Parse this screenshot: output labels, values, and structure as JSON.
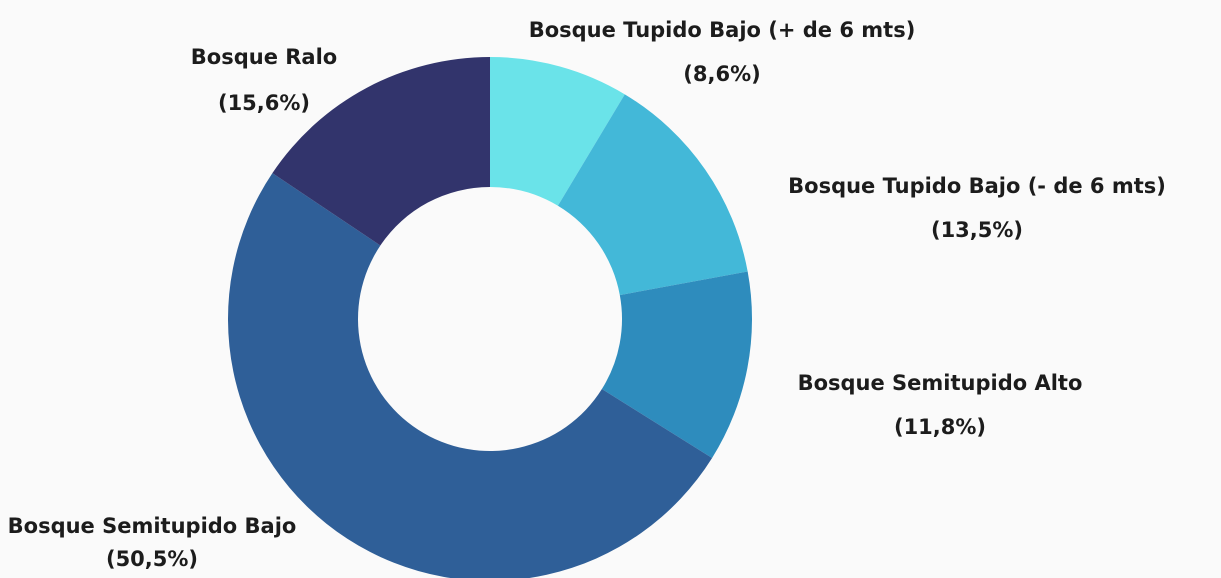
{
  "chart_data": {
    "type": "donut",
    "categories": [
      "Bosque Tupido Bajo (+ de 6 mts)",
      "Bosque Tupido Bajo (- de 6 mts)",
      "Bosque Semitupido Alto",
      "Bosque Semitupido Bajo",
      "Bosque Ralo"
    ],
    "values": [
      8.6,
      13.5,
      11.8,
      50.5,
      15.6
    ],
    "value_labels": [
      "(8,6%)",
      "(13,5%)",
      "(11,8%)",
      "(50,5%)",
      "(15,6%)"
    ],
    "colors": [
      "#6ae3e9",
      "#43b8d8",
      "#2e8cbd",
      "#2f5f98",
      "#32346c"
    ]
  }
}
